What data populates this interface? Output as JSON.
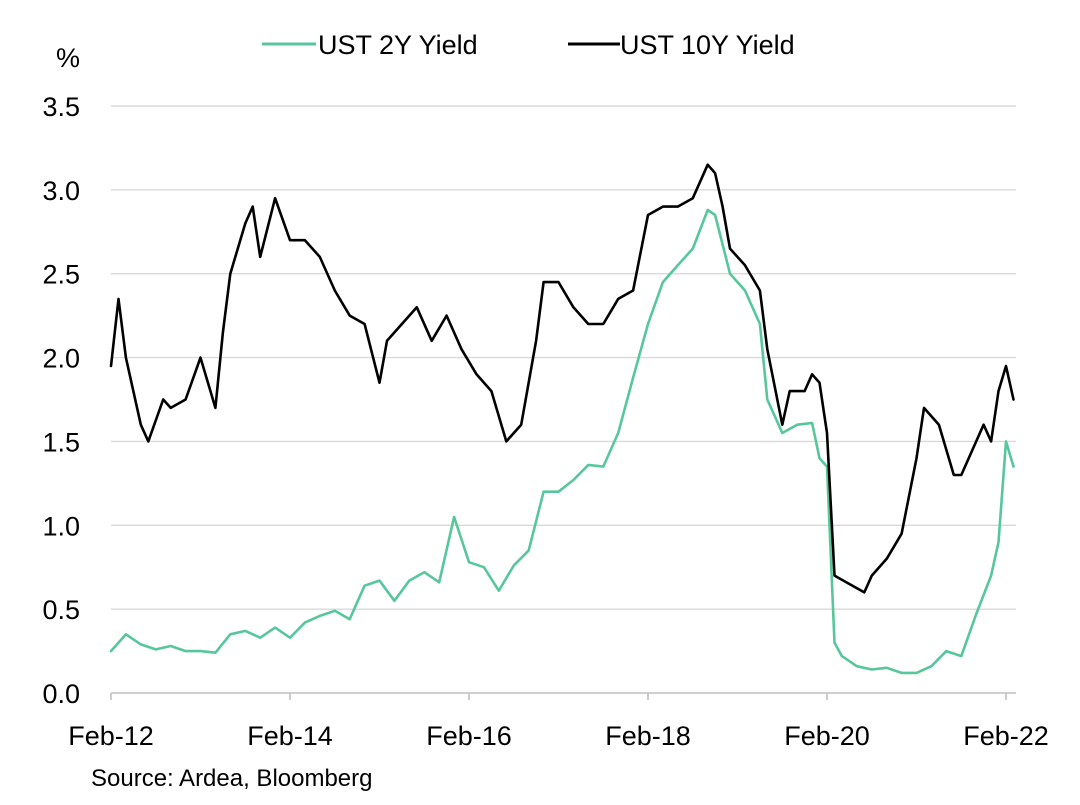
{
  "chart_data": {
    "type": "line",
    "title": "",
    "ylabel": "%",
    "xlabel": "",
    "ylim": [
      0,
      3.5
    ],
    "yticks": [
      "0.0",
      "0.5",
      "1.0",
      "1.5",
      "2.0",
      "2.5",
      "3.0",
      "3.5"
    ],
    "xlim": [
      "2012-02",
      "2022-03"
    ],
    "xticks": [
      {
        "label": "Feb-12",
        "date": "2012-02"
      },
      {
        "label": "Feb-14",
        "date": "2014-02"
      },
      {
        "label": "Feb-16",
        "date": "2016-02"
      },
      {
        "label": "Feb-18",
        "date": "2018-02"
      },
      {
        "label": "Feb-20",
        "date": "2020-02"
      },
      {
        "label": "Feb-22",
        "date": "2022-02"
      }
    ],
    "grid": "horizontal",
    "legend_position": "top",
    "source": "Source: Ardea, Bloomberg",
    "series": [
      {
        "name": "UST 2Y Yield",
        "color": "#57c79b",
        "x": [
          "2012-02",
          "2012-04",
          "2012-06",
          "2012-08",
          "2012-10",
          "2012-12",
          "2013-02",
          "2013-04",
          "2013-06",
          "2013-08",
          "2013-10",
          "2013-12",
          "2014-02",
          "2014-04",
          "2014-06",
          "2014-08",
          "2014-10",
          "2014-12",
          "2015-02",
          "2015-04",
          "2015-06",
          "2015-08",
          "2015-10",
          "2015-12",
          "2016-02",
          "2016-04",
          "2016-06",
          "2016-08",
          "2016-10",
          "2016-12",
          "2017-02",
          "2017-04",
          "2017-06",
          "2017-08",
          "2017-10",
          "2017-12",
          "2018-02",
          "2018-04",
          "2018-06",
          "2018-08",
          "2018-10",
          "2018-11",
          "2019-01",
          "2019-03",
          "2019-05",
          "2019-06",
          "2019-08",
          "2019-10",
          "2019-12",
          "2020-01",
          "2020-02",
          "2020-03",
          "2020-04",
          "2020-06",
          "2020-08",
          "2020-10",
          "2020-12",
          "2021-02",
          "2021-04",
          "2021-06",
          "2021-08",
          "2021-10",
          "2021-12",
          "2022-01",
          "2022-02",
          "2022-03"
        ],
        "values": [
          0.25,
          0.35,
          0.29,
          0.26,
          0.28,
          0.25,
          0.25,
          0.24,
          0.35,
          0.37,
          0.33,
          0.39,
          0.33,
          0.42,
          0.46,
          0.49,
          0.44,
          0.64,
          0.67,
          0.55,
          0.67,
          0.72,
          0.66,
          1.05,
          0.78,
          0.75,
          0.61,
          0.76,
          0.85,
          1.2,
          1.2,
          1.27,
          1.36,
          1.35,
          1.55,
          1.88,
          2.2,
          2.45,
          2.55,
          2.65,
          2.88,
          2.85,
          2.5,
          2.4,
          2.2,
          1.75,
          1.55,
          1.6,
          1.61,
          1.4,
          1.35,
          0.3,
          0.22,
          0.16,
          0.14,
          0.15,
          0.12,
          0.12,
          0.16,
          0.25,
          0.22,
          0.47,
          0.7,
          0.9,
          1.5,
          1.35
        ]
      },
      {
        "name": "UST 10Y Yield",
        "color": "#000000",
        "x": [
          "2012-02",
          "2012-03",
          "2012-04",
          "2012-06",
          "2012-07",
          "2012-09",
          "2012-10",
          "2012-12",
          "2013-02",
          "2013-04",
          "2013-05",
          "2013-06",
          "2013-08",
          "2013-09",
          "2013-10",
          "2013-12",
          "2014-02",
          "2014-04",
          "2014-06",
          "2014-08",
          "2014-10",
          "2014-12",
          "2015-02",
          "2015-03",
          "2015-05",
          "2015-07",
          "2015-09",
          "2015-11",
          "2016-01",
          "2016-03",
          "2016-05",
          "2016-07",
          "2016-09",
          "2016-11",
          "2016-12",
          "2017-02",
          "2017-04",
          "2017-06",
          "2017-08",
          "2017-10",
          "2017-12",
          "2018-02",
          "2018-04",
          "2018-06",
          "2018-08",
          "2018-10",
          "2018-11",
          "2018-12",
          "2019-01",
          "2019-03",
          "2019-05",
          "2019-06",
          "2019-08",
          "2019-09",
          "2019-11",
          "2019-12",
          "2020-01",
          "2020-02",
          "2020-03",
          "2020-05",
          "2020-07",
          "2020-08",
          "2020-10",
          "2020-12",
          "2021-02",
          "2021-03",
          "2021-05",
          "2021-07",
          "2021-08",
          "2021-10",
          "2021-11",
          "2021-12",
          "2022-01",
          "2022-02",
          "2022-03"
        ],
        "values": [
          1.95,
          2.35,
          2.0,
          1.6,
          1.5,
          1.75,
          1.7,
          1.75,
          2.0,
          1.7,
          2.15,
          2.5,
          2.8,
          2.9,
          2.6,
          2.95,
          2.7,
          2.7,
          2.6,
          2.4,
          2.25,
          2.2,
          1.85,
          2.1,
          2.2,
          2.3,
          2.1,
          2.25,
          2.05,
          1.9,
          1.8,
          1.5,
          1.6,
          2.1,
          2.45,
          2.45,
          2.3,
          2.2,
          2.2,
          2.35,
          2.4,
          2.85,
          2.9,
          2.9,
          2.95,
          3.15,
          3.1,
          2.9,
          2.65,
          2.55,
          2.4,
          2.05,
          1.6,
          1.8,
          1.8,
          1.9,
          1.85,
          1.55,
          0.7,
          0.65,
          0.6,
          0.7,
          0.8,
          0.95,
          1.4,
          1.7,
          1.6,
          1.3,
          1.3,
          1.5,
          1.6,
          1.5,
          1.8,
          1.95,
          1.75
        ]
      }
    ]
  }
}
